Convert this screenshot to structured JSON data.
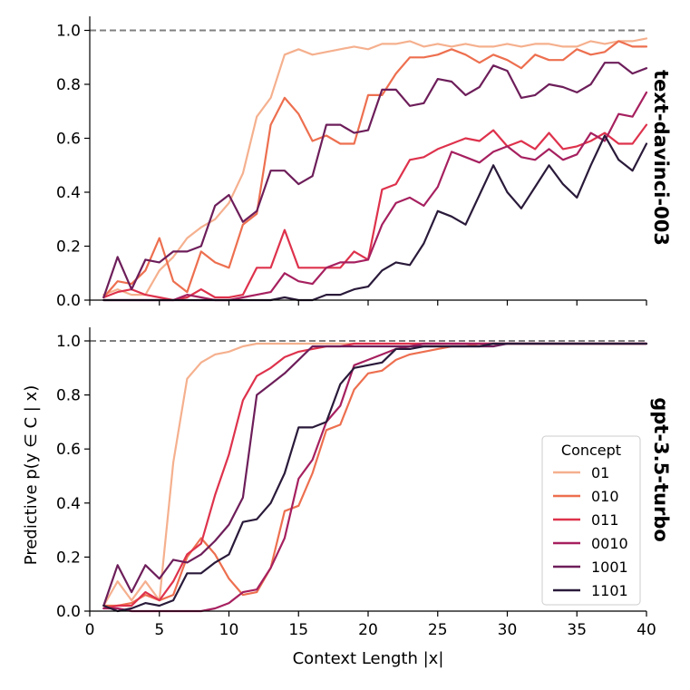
{
  "chart_data": [
    {
      "type": "line",
      "panel": "top",
      "title": "text-davinci-003",
      "xlabel": "",
      "ylabel": "",
      "xlim": [
        0,
        40
      ],
      "ylim": [
        0,
        1.05
      ],
      "xticks": [
        0,
        5,
        10,
        15,
        20,
        25,
        30,
        35,
        40
      ],
      "yticks": [
        0.0,
        0.2,
        0.4,
        0.6,
        0.8,
        1.0
      ],
      "ytick_labels": [
        "0.0",
        "0.2",
        "0.4",
        "0.6",
        "0.8",
        "1.0"
      ],
      "reference_line": 1.0,
      "x": [
        1,
        2,
        3,
        4,
        5,
        6,
        7,
        8,
        9,
        10,
        11,
        12,
        13,
        14,
        15,
        16,
        17,
        18,
        19,
        20,
        21,
        22,
        23,
        24,
        25,
        26,
        27,
        28,
        29,
        30,
        31,
        32,
        33,
        34,
        35,
        36,
        37,
        38,
        39,
        40
      ],
      "series": [
        {
          "name": "01",
          "color": "#f5b08e",
          "values": [
            0.02,
            0.04,
            0.02,
            0.02,
            0.11,
            0.16,
            0.23,
            0.27,
            0.3,
            0.36,
            0.47,
            0.68,
            0.75,
            0.91,
            0.93,
            0.91,
            0.92,
            0.93,
            0.94,
            0.93,
            0.95,
            0.95,
            0.96,
            0.94,
            0.95,
            0.94,
            0.95,
            0.94,
            0.94,
            0.95,
            0.94,
            0.95,
            0.95,
            0.94,
            0.94,
            0.96,
            0.95,
            0.96,
            0.96,
            0.97
          ]
        },
        {
          "name": "010",
          "color": "#ed6f4f",
          "values": [
            0.01,
            0.07,
            0.06,
            0.11,
            0.23,
            0.07,
            0.03,
            0.18,
            0.14,
            0.12,
            0.28,
            0.32,
            0.65,
            0.75,
            0.69,
            0.59,
            0.61,
            0.58,
            0.58,
            0.76,
            0.76,
            0.84,
            0.9,
            0.9,
            0.91,
            0.93,
            0.91,
            0.88,
            0.91,
            0.89,
            0.86,
            0.91,
            0.89,
            0.89,
            0.93,
            0.91,
            0.92,
            0.96,
            0.94,
            0.94
          ]
        },
        {
          "name": "011",
          "color": "#de324c",
          "values": [
            0.01,
            0.03,
            0.04,
            0.02,
            0.01,
            0.0,
            0.01,
            0.04,
            0.01,
            0.01,
            0.02,
            0.12,
            0.12,
            0.26,
            0.12,
            0.12,
            0.12,
            0.12,
            0.18,
            0.15,
            0.41,
            0.43,
            0.52,
            0.53,
            0.56,
            0.58,
            0.6,
            0.59,
            0.63,
            0.57,
            0.59,
            0.56,
            0.62,
            0.56,
            0.57,
            0.59,
            0.62,
            0.58,
            0.58,
            0.65
          ]
        },
        {
          "name": "0010",
          "color": "#a6205f",
          "values": [
            0.0,
            0.0,
            0.0,
            0.0,
            0.0,
            0.0,
            0.02,
            0.01,
            0.0,
            0.0,
            0.01,
            0.02,
            0.03,
            0.1,
            0.07,
            0.06,
            0.12,
            0.14,
            0.14,
            0.15,
            0.28,
            0.36,
            0.38,
            0.35,
            0.42,
            0.55,
            0.53,
            0.51,
            0.55,
            0.57,
            0.53,
            0.52,
            0.56,
            0.52,
            0.54,
            0.62,
            0.59,
            0.69,
            0.68,
            0.77
          ]
        },
        {
          "name": "1001",
          "color": "#6d1e5a",
          "values": [
            0.01,
            0.16,
            0.04,
            0.15,
            0.14,
            0.18,
            0.18,
            0.2,
            0.35,
            0.39,
            0.29,
            0.33,
            0.48,
            0.48,
            0.43,
            0.46,
            0.65,
            0.65,
            0.62,
            0.63,
            0.78,
            0.78,
            0.72,
            0.73,
            0.82,
            0.81,
            0.76,
            0.79,
            0.87,
            0.85,
            0.75,
            0.76,
            0.8,
            0.79,
            0.77,
            0.8,
            0.88,
            0.88,
            0.84,
            0.86
          ]
        },
        {
          "name": "1101",
          "color": "#2a1a3a",
          "values": [
            0.0,
            0.0,
            0.0,
            0.0,
            0.0,
            0.0,
            0.0,
            0.0,
            0.0,
            0.0,
            0.0,
            0.0,
            0.0,
            0.01,
            0.0,
            0.0,
            0.02,
            0.02,
            0.04,
            0.05,
            0.11,
            0.14,
            0.13,
            0.21,
            0.33,
            0.31,
            0.28,
            0.39,
            0.5,
            0.4,
            0.34,
            0.42,
            0.5,
            0.43,
            0.38,
            0.5,
            0.61,
            0.52,
            0.48,
            0.58
          ]
        }
      ]
    },
    {
      "type": "line",
      "panel": "bottom",
      "title": "gpt-3.5-turbo",
      "xlabel": "Context Length  |x|",
      "ylabel": "Predictive  p(y ∈ C | x)",
      "xlim": [
        0,
        40
      ],
      "ylim": [
        0,
        1.05
      ],
      "xticks": [
        0,
        5,
        10,
        15,
        20,
        25,
        30,
        35,
        40
      ],
      "xtick_labels": [
        "0",
        "5",
        "10",
        "15",
        "20",
        "25",
        "30",
        "35",
        "40"
      ],
      "yticks": [
        0.0,
        0.2,
        0.4,
        0.6,
        0.8,
        1.0
      ],
      "ytick_labels": [
        "0.0",
        "0.2",
        "0.4",
        "0.6",
        "0.8",
        "1.0"
      ],
      "reference_line": 1.0,
      "legend": {
        "title": "Concept",
        "placement": "lower-right"
      },
      "x": [
        1,
        2,
        3,
        4,
        5,
        6,
        7,
        8,
        9,
        10,
        11,
        12,
        13,
        14,
        15,
        16,
        17,
        18,
        19,
        20,
        21,
        22,
        23,
        24,
        25,
        26,
        27,
        28,
        29,
        30,
        31,
        32,
        33,
        34,
        35,
        36,
        37,
        38,
        39,
        40
      ],
      "series": [
        {
          "name": "01",
          "color": "#f5b08e",
          "values": [
            0.02,
            0.11,
            0.04,
            0.11,
            0.04,
            0.55,
            0.86,
            0.92,
            0.95,
            0.96,
            0.98,
            0.99,
            0.99,
            0.99,
            0.99,
            0.99,
            0.99,
            0.99,
            0.99,
            0.99,
            0.99,
            0.99,
            0.99,
            0.99,
            0.99,
            0.99,
            0.99,
            0.99,
            0.99,
            0.99,
            0.99,
            0.99,
            0.99,
            0.99,
            0.99,
            0.99,
            0.99,
            0.99,
            0.99,
            0.99
          ]
        },
        {
          "name": "010",
          "color": "#ed6f4f",
          "values": [
            0.02,
            0.02,
            0.03,
            0.06,
            0.04,
            0.06,
            0.2,
            0.27,
            0.21,
            0.12,
            0.06,
            0.07,
            0.16,
            0.37,
            0.39,
            0.51,
            0.67,
            0.69,
            0.82,
            0.88,
            0.89,
            0.93,
            0.95,
            0.96,
            0.97,
            0.98,
            0.98,
            0.99,
            0.99,
            0.99,
            0.99,
            0.99,
            0.99,
            0.99,
            0.99,
            0.99,
            0.99,
            0.99,
            0.99,
            0.99
          ]
        },
        {
          "name": "011",
          "color": "#de324c",
          "values": [
            0.01,
            0.02,
            0.02,
            0.07,
            0.04,
            0.11,
            0.21,
            0.25,
            0.43,
            0.58,
            0.78,
            0.87,
            0.9,
            0.94,
            0.96,
            0.97,
            0.98,
            0.98,
            0.99,
            0.99,
            0.99,
            0.99,
            0.99,
            0.99,
            0.99,
            0.99,
            0.99,
            0.99,
            0.99,
            0.99,
            0.99,
            0.99,
            0.99,
            0.99,
            0.99,
            0.99,
            0.99,
            0.99,
            0.99,
            0.99
          ]
        },
        {
          "name": "0010",
          "color": "#a6205f",
          "values": [
            0.01,
            0.01,
            0.0,
            0.0,
            0.0,
            0.0,
            0.0,
            0.0,
            0.01,
            0.03,
            0.07,
            0.08,
            0.16,
            0.27,
            0.49,
            0.56,
            0.7,
            0.76,
            0.91,
            0.93,
            0.95,
            0.97,
            0.98,
            0.99,
            0.99,
            0.99,
            0.99,
            0.99,
            0.99,
            0.99,
            0.99,
            0.99,
            0.99,
            0.99,
            0.99,
            0.99,
            0.99,
            0.99,
            0.99,
            0.99
          ]
        },
        {
          "name": "1001",
          "color": "#6d1e5a",
          "values": [
            0.02,
            0.17,
            0.07,
            0.17,
            0.12,
            0.19,
            0.18,
            0.21,
            0.26,
            0.32,
            0.42,
            0.8,
            0.84,
            0.88,
            0.93,
            0.98,
            0.98,
            0.98,
            0.98,
            0.98,
            0.98,
            0.98,
            0.98,
            0.98,
            0.98,
            0.98,
            0.98,
            0.98,
            0.98,
            0.99,
            0.99,
            0.99,
            0.99,
            0.99,
            0.99,
            0.99,
            0.99,
            0.99,
            0.99,
            0.99
          ]
        },
        {
          "name": "1101",
          "color": "#2a1a3a",
          "values": [
            0.02,
            0.0,
            0.01,
            0.03,
            0.02,
            0.04,
            0.14,
            0.14,
            0.18,
            0.21,
            0.33,
            0.34,
            0.4,
            0.51,
            0.68,
            0.68,
            0.7,
            0.84,
            0.9,
            0.91,
            0.92,
            0.97,
            0.97,
            0.98,
            0.98,
            0.98,
            0.98,
            0.98,
            0.99,
            0.99,
            0.99,
            0.99,
            0.99,
            0.99,
            0.99,
            0.99,
            0.99,
            0.99,
            0.99,
            0.99
          ]
        }
      ]
    }
  ],
  "colors": {
    "reference_line": "#808080",
    "axis": "#000000",
    "legend_border": "#cccccc"
  }
}
